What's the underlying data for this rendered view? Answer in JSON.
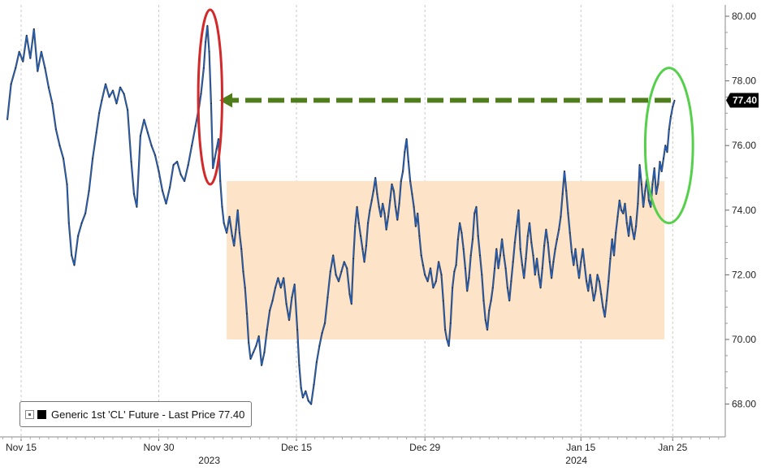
{
  "chart_data": {
    "type": "line",
    "title": "",
    "xlabel": "",
    "ylabel": "",
    "ylim": [
      67.2,
      80.3
    ],
    "yticks": [
      "80.00",
      "78.00",
      "76.00",
      "74.00",
      "72.00",
      "70.00",
      "68.00"
    ],
    "ytick_values": [
      80,
      78,
      76,
      74,
      72,
      70,
      68
    ],
    "xticks": [
      {
        "label": "Nov 15",
        "day": 0
      },
      {
        "label": "Nov 30",
        "day": 15
      },
      {
        "label": "Dec 15",
        "day": 30
      },
      {
        "label": "Dec 29",
        "day": 44
      },
      {
        "label": "Jan 15",
        "day": 61
      },
      {
        "label": "Jan 25",
        "day": 71
      }
    ],
    "year_labels": [
      {
        "label": "2023",
        "day": 20.5
      },
      {
        "label": "2024",
        "day": 60.5
      }
    ],
    "grid": "vertical",
    "series": [
      {
        "name": "Generic 1st 'CL' Future - Last Price",
        "color": "#1f5fbf",
        "last_value": "77.40",
        "points": [
          [
            -1.5,
            76.8
          ],
          [
            -1.1,
            77.9
          ],
          [
            -0.6,
            78.4
          ],
          [
            -0.2,
            78.9
          ],
          [
            0.2,
            78.6
          ],
          [
            0.6,
            79.4
          ],
          [
            1.0,
            78.7
          ],
          [
            1.4,
            79.6
          ],
          [
            1.8,
            78.3
          ],
          [
            2.2,
            78.9
          ],
          [
            2.6,
            78.4
          ],
          [
            3.0,
            77.8
          ],
          [
            3.4,
            77.3
          ],
          [
            3.8,
            76.5
          ],
          [
            4.2,
            76.0
          ],
          [
            4.6,
            75.6
          ],
          [
            5.0,
            74.8
          ],
          [
            5.2,
            73.6
          ],
          [
            5.5,
            72.6
          ],
          [
            5.8,
            72.3
          ],
          [
            6.2,
            73.2
          ],
          [
            6.6,
            73.6
          ],
          [
            7.0,
            73.9
          ],
          [
            7.4,
            74.6
          ],
          [
            7.8,
            75.6
          ],
          [
            8.2,
            76.4
          ],
          [
            8.5,
            77.0
          ],
          [
            8.8,
            77.4
          ],
          [
            9.2,
            77.9
          ],
          [
            9.6,
            77.5
          ],
          [
            10.0,
            77.7
          ],
          [
            10.4,
            77.3
          ],
          [
            10.8,
            77.8
          ],
          [
            11.2,
            77.6
          ],
          [
            11.6,
            77.1
          ],
          [
            12.0,
            75.5
          ],
          [
            12.3,
            74.5
          ],
          [
            12.6,
            74.1
          ],
          [
            13.0,
            76.3
          ],
          [
            13.4,
            76.8
          ],
          [
            13.8,
            76.4
          ],
          [
            14.2,
            76.0
          ],
          [
            14.6,
            75.7
          ],
          [
            15.0,
            75.2
          ],
          [
            15.4,
            74.6
          ],
          [
            15.8,
            74.2
          ],
          [
            16.2,
            74.7
          ],
          [
            16.6,
            75.4
          ],
          [
            17.0,
            75.5
          ],
          [
            17.4,
            75.1
          ],
          [
            17.8,
            74.9
          ],
          [
            18.2,
            75.4
          ],
          [
            18.6,
            76.0
          ],
          [
            19.0,
            76.6
          ],
          [
            19.4,
            77.2
          ],
          [
            19.6,
            77.6
          ],
          [
            19.9,
            78.4
          ],
          [
            20.1,
            79.2
          ],
          [
            20.3,
            79.7
          ],
          [
            20.5,
            78.9
          ],
          [
            20.7,
            77.3
          ],
          [
            20.9,
            75.3
          ],
          [
            21.1,
            75.6
          ],
          [
            21.3,
            75.9
          ],
          [
            21.5,
            76.2
          ],
          [
            21.7,
            74.9
          ],
          [
            21.9,
            74.1
          ],
          [
            22.1,
            73.6
          ],
          [
            22.4,
            73.3
          ],
          [
            22.7,
            73.8
          ],
          [
            23.0,
            73.2
          ],
          [
            23.2,
            72.9
          ],
          [
            23.4,
            73.4
          ],
          [
            23.6,
            74.0
          ],
          [
            23.8,
            73.3
          ],
          [
            24.0,
            72.8
          ],
          [
            24.2,
            72.1
          ],
          [
            24.4,
            71.6
          ],
          [
            24.6,
            70.8
          ],
          [
            24.8,
            69.9
          ],
          [
            25.0,
            69.4
          ],
          [
            25.3,
            69.6
          ],
          [
            25.6,
            69.8
          ],
          [
            25.9,
            70.1
          ],
          [
            26.2,
            69.2
          ],
          [
            26.5,
            69.6
          ],
          [
            26.8,
            70.3
          ],
          [
            27.1,
            70.9
          ],
          [
            27.4,
            71.2
          ],
          [
            27.7,
            71.6
          ],
          [
            28.0,
            71.9
          ],
          [
            28.3,
            71.6
          ],
          [
            28.6,
            71.9
          ],
          [
            28.9,
            71.1
          ],
          [
            29.2,
            70.6
          ],
          [
            29.5,
            71.3
          ],
          [
            29.8,
            71.7
          ],
          [
            30.1,
            70.3
          ],
          [
            30.3,
            69.2
          ],
          [
            30.5,
            68.5
          ],
          [
            30.7,
            68.2
          ],
          [
            31.0,
            68.4
          ],
          [
            31.3,
            68.1
          ],
          [
            31.6,
            68.0
          ],
          [
            31.9,
            68.6
          ],
          [
            32.2,
            69.3
          ],
          [
            32.5,
            69.8
          ],
          [
            32.8,
            70.2
          ],
          [
            33.1,
            70.5
          ],
          [
            33.4,
            71.3
          ],
          [
            33.7,
            72.1
          ],
          [
            34.0,
            72.6
          ],
          [
            34.3,
            72.0
          ],
          [
            34.6,
            71.8
          ],
          [
            34.9,
            72.1
          ],
          [
            35.2,
            72.4
          ],
          [
            35.5,
            72.2
          ],
          [
            35.8,
            71.4
          ],
          [
            36.0,
            71.1
          ],
          [
            36.2,
            72.5
          ],
          [
            36.4,
            73.5
          ],
          [
            36.6,
            74.1
          ],
          [
            36.8,
            73.6
          ],
          [
            37.0,
            73.2
          ],
          [
            37.2,
            72.8
          ],
          [
            37.4,
            72.4
          ],
          [
            37.6,
            72.9
          ],
          [
            37.8,
            73.6
          ],
          [
            38.0,
            74.0
          ],
          [
            38.2,
            74.3
          ],
          [
            38.4,
            74.6
          ],
          [
            38.6,
            75.0
          ],
          [
            38.8,
            74.5
          ],
          [
            39.0,
            74.1
          ],
          [
            39.2,
            73.8
          ],
          [
            39.4,
            74.2
          ],
          [
            39.6,
            73.9
          ],
          [
            39.8,
            73.4
          ],
          [
            40.0,
            73.8
          ],
          [
            40.2,
            74.3
          ],
          [
            40.4,
            74.8
          ],
          [
            40.6,
            74.6
          ],
          [
            40.8,
            74.1
          ],
          [
            41.0,
            73.7
          ],
          [
            41.2,
            74.2
          ],
          [
            41.4,
            74.9
          ],
          [
            41.6,
            75.2
          ],
          [
            41.8,
            75.8
          ],
          [
            42.0,
            76.2
          ],
          [
            42.2,
            75.5
          ],
          [
            42.4,
            74.9
          ],
          [
            42.6,
            74.5
          ],
          [
            42.8,
            74.1
          ],
          [
            43.0,
            73.5
          ],
          [
            43.2,
            73.9
          ],
          [
            43.4,
            73.2
          ],
          [
            43.6,
            72.6
          ],
          [
            43.8,
            72.3
          ],
          [
            44.0,
            72.0
          ],
          [
            44.3,
            71.8
          ],
          [
            44.6,
            72.2
          ],
          [
            44.9,
            71.6
          ],
          [
            45.2,
            71.8
          ],
          [
            45.5,
            72.4
          ],
          [
            45.8,
            72.0
          ],
          [
            46.0,
            71.2
          ],
          [
            46.2,
            70.3
          ],
          [
            46.4,
            70.0
          ],
          [
            46.6,
            69.8
          ],
          [
            46.8,
            70.5
          ],
          [
            47.0,
            71.6
          ],
          [
            47.2,
            72.1
          ],
          [
            47.4,
            72.3
          ],
          [
            47.6,
            73.1
          ],
          [
            47.8,
            73.6
          ],
          [
            48.0,
            73.3
          ],
          [
            48.2,
            72.8
          ],
          [
            48.4,
            72.2
          ],
          [
            48.6,
            71.5
          ],
          [
            48.8,
            71.9
          ],
          [
            49.0,
            72.6
          ],
          [
            49.2,
            73.1
          ],
          [
            49.4,
            73.9
          ],
          [
            49.6,
            74.1
          ],
          [
            49.8,
            73.2
          ],
          [
            50.0,
            72.6
          ],
          [
            50.2,
            72.0
          ],
          [
            50.4,
            71.2
          ],
          [
            50.6,
            70.6
          ],
          [
            50.8,
            70.3
          ],
          [
            51.0,
            70.9
          ],
          [
            51.2,
            71.2
          ],
          [
            51.4,
            71.6
          ],
          [
            51.6,
            72.2
          ],
          [
            51.8,
            72.8
          ],
          [
            52.0,
            72.2
          ],
          [
            52.2,
            72.6
          ],
          [
            52.4,
            73.1
          ],
          [
            52.6,
            72.6
          ],
          [
            52.8,
            72.2
          ],
          [
            53.0,
            71.6
          ],
          [
            53.2,
            71.2
          ],
          [
            53.4,
            71.8
          ],
          [
            53.6,
            72.4
          ],
          [
            53.8,
            73.0
          ],
          [
            54.0,
            73.5
          ],
          [
            54.2,
            74.0
          ],
          [
            54.4,
            72.8
          ],
          [
            54.6,
            72.3
          ],
          [
            54.8,
            71.9
          ],
          [
            55.0,
            72.5
          ],
          [
            55.2,
            73.2
          ],
          [
            55.4,
            73.6
          ],
          [
            55.6,
            73.0
          ],
          [
            55.8,
            72.6
          ],
          [
            56.0,
            72.0
          ],
          [
            56.2,
            72.5
          ],
          [
            56.4,
            72.0
          ],
          [
            56.6,
            71.6
          ],
          [
            56.8,
            72.2
          ],
          [
            57.0,
            72.9
          ],
          [
            57.2,
            73.4
          ],
          [
            57.4,
            73.0
          ],
          [
            57.6,
            72.4
          ],
          [
            57.8,
            71.9
          ],
          [
            58.0,
            72.4
          ],
          [
            58.2,
            72.8
          ],
          [
            58.4,
            73.1
          ],
          [
            58.6,
            73.4
          ],
          [
            58.8,
            73.8
          ],
          [
            59.0,
            74.5
          ],
          [
            59.2,
            75.2
          ],
          [
            59.4,
            74.6
          ],
          [
            59.6,
            73.9
          ],
          [
            59.8,
            73.3
          ],
          [
            60.0,
            72.7
          ],
          [
            60.2,
            72.3
          ],
          [
            60.4,
            72.8
          ],
          [
            60.6,
            72.3
          ],
          [
            60.8,
            71.9
          ],
          [
            61.0,
            72.4
          ],
          [
            61.2,
            72.8
          ],
          [
            61.4,
            72.3
          ],
          [
            61.6,
            71.8
          ],
          [
            61.8,
            71.5
          ],
          [
            62.0,
            72.0
          ],
          [
            62.2,
            71.6
          ],
          [
            62.4,
            71.2
          ],
          [
            62.6,
            71.5
          ],
          [
            62.8,
            72.0
          ],
          [
            63.0,
            71.8
          ],
          [
            63.2,
            71.4
          ],
          [
            63.4,
            71.0
          ],
          [
            63.6,
            70.7
          ],
          [
            63.8,
            71.2
          ],
          [
            64.0,
            71.8
          ],
          [
            64.2,
            72.5
          ],
          [
            64.4,
            73.1
          ],
          [
            64.6,
            72.6
          ],
          [
            64.8,
            73.3
          ],
          [
            65.0,
            73.8
          ],
          [
            65.2,
            74.3
          ],
          [
            65.4,
            74.0
          ],
          [
            65.6,
            73.9
          ],
          [
            65.8,
            74.2
          ],
          [
            66.0,
            73.6
          ],
          [
            66.2,
            73.2
          ],
          [
            66.4,
            73.8
          ],
          [
            66.6,
            73.4
          ],
          [
            66.8,
            73.1
          ],
          [
            67.0,
            73.5
          ],
          [
            67.2,
            74.2
          ],
          [
            67.4,
            75.4
          ],
          [
            67.6,
            74.8
          ],
          [
            67.8,
            74.1
          ],
          [
            68.0,
            74.6
          ],
          [
            68.2,
            75.0
          ],
          [
            68.4,
            74.3
          ],
          [
            68.6,
            74.1
          ],
          [
            68.8,
            74.8
          ],
          [
            69.0,
            75.3
          ],
          [
            69.2,
            74.5
          ],
          [
            69.4,
            74.8
          ],
          [
            69.6,
            75.5
          ],
          [
            69.8,
            75.2
          ],
          [
            70.0,
            75.6
          ],
          [
            70.2,
            76.0
          ],
          [
            70.4,
            75.8
          ],
          [
            70.6,
            76.5
          ],
          [
            70.8,
            76.9
          ],
          [
            71.0,
            77.2
          ],
          [
            71.2,
            77.4
          ]
        ]
      }
    ],
    "annotations": {
      "box": {
        "x_start": 22.4,
        "x_end": 70.1,
        "y_low": 70.0,
        "y_high": 74.9,
        "color": "#fde3c8"
      },
      "red_ellipse": {
        "x_center": 20.6,
        "y_center": 77.5,
        "x_radius": 1.3,
        "y_radius": 2.7
      },
      "green_ellipse": {
        "x_center": 70.6,
        "y_center": 76.0,
        "x_radius": 2.6,
        "y_radius": 2.4
      },
      "arrow": {
        "from_day": 70.8,
        "to_day": 21.6,
        "level": 77.4,
        "color": "#4f7d1c"
      }
    },
    "legend": {
      "placement": "bottom-left",
      "label": "Generic 1st 'CL' Future - Last Price 77.40"
    }
  }
}
